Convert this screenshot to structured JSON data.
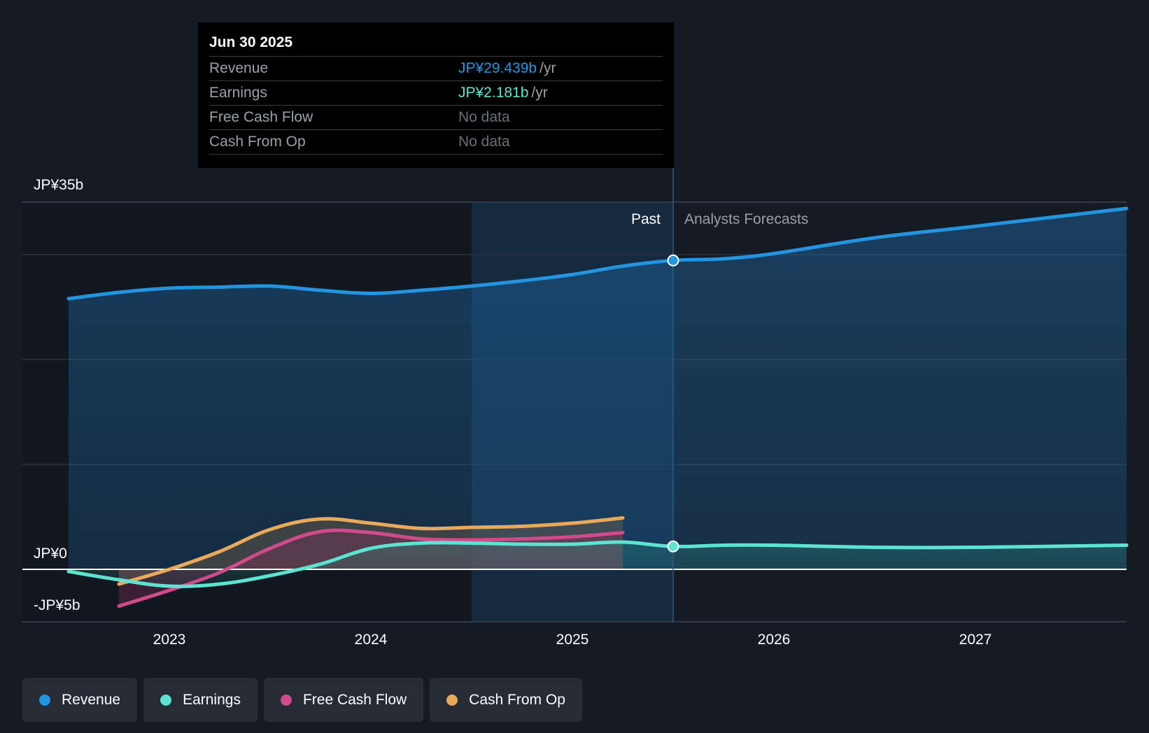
{
  "tooltip": {
    "date": "Jun 30 2025",
    "rows": [
      {
        "label": "Revenue",
        "value": "JP¥29.439b",
        "unit": "/yr",
        "color": "#2394df"
      },
      {
        "label": "Earnings",
        "value": "JP¥2.181b",
        "unit": "/yr",
        "color": "#5ce3d1"
      },
      {
        "label": "Free Cash Flow",
        "value": "No data",
        "unit": "",
        "color": ""
      },
      {
        "label": "Cash From Op",
        "value": "No data",
        "unit": "",
        "color": ""
      }
    ]
  },
  "sections": {
    "past_label": "Past",
    "forecast_label": "Analysts Forecasts"
  },
  "legend": [
    {
      "label": "Revenue",
      "color": "#2394df"
    },
    {
      "label": "Earnings",
      "color": "#5ce3d1"
    },
    {
      "label": "Free Cash Flow",
      "color": "#d04a8c"
    },
    {
      "label": "Cash From Op",
      "color": "#e8a95a"
    }
  ],
  "chart_data": {
    "type": "line",
    "currency": "JP¥",
    "y_tick_labels": [
      {
        "value": 35,
        "label": "JP¥35b"
      },
      {
        "value": 0,
        "label": "JP¥0"
      },
      {
        "value": -5,
        "label": "-JP¥5b"
      }
    ],
    "ylim": [
      -5,
      35
    ],
    "xlim": [
      2022.5,
      2027.75
    ],
    "x_ticks": [
      2023,
      2024,
      2025,
      2026,
      2027
    ],
    "past_end": 2025.5,
    "highlight_start": 2024.5,
    "grid": true,
    "series": [
      {
        "name": "Revenue",
        "color": "#2394df",
        "points": [
          [
            2022.5,
            25.8
          ],
          [
            2022.75,
            26.4
          ],
          [
            2023.0,
            26.8
          ],
          [
            2023.25,
            26.9
          ],
          [
            2023.5,
            27.0
          ],
          [
            2023.75,
            26.6
          ],
          [
            2024.0,
            26.3
          ],
          [
            2024.25,
            26.6
          ],
          [
            2024.5,
            27.0
          ],
          [
            2024.75,
            27.5
          ],
          [
            2025.0,
            28.1
          ],
          [
            2025.25,
            28.9
          ],
          [
            2025.5,
            29.439
          ],
          [
            2025.75,
            29.6
          ],
          [
            2026.0,
            30.1
          ],
          [
            2026.5,
            31.6
          ],
          [
            2027.0,
            32.7
          ],
          [
            2027.75,
            34.4
          ]
        ]
      },
      {
        "name": "Earnings",
        "color": "#5ce3d1",
        "points": [
          [
            2022.5,
            -0.2
          ],
          [
            2022.75,
            -1.0
          ],
          [
            2023.0,
            -1.6
          ],
          [
            2023.25,
            -1.4
          ],
          [
            2023.5,
            -0.6
          ],
          [
            2023.75,
            0.5
          ],
          [
            2024.0,
            2.0
          ],
          [
            2024.25,
            2.5
          ],
          [
            2024.5,
            2.5
          ],
          [
            2024.75,
            2.4
          ],
          [
            2025.0,
            2.4
          ],
          [
            2025.25,
            2.6
          ],
          [
            2025.5,
            2.181
          ],
          [
            2025.75,
            2.3
          ],
          [
            2026.0,
            2.3
          ],
          [
            2026.5,
            2.1
          ],
          [
            2027.0,
            2.1
          ],
          [
            2027.75,
            2.3
          ]
        ]
      },
      {
        "name": "Free Cash Flow",
        "color": "#d04a8c",
        "points": [
          [
            2022.75,
            -3.5
          ],
          [
            2023.0,
            -2.0
          ],
          [
            2023.25,
            -0.3
          ],
          [
            2023.5,
            2.0
          ],
          [
            2023.75,
            3.6
          ],
          [
            2024.0,
            3.5
          ],
          [
            2024.25,
            2.9
          ],
          [
            2024.5,
            2.8
          ],
          [
            2024.75,
            2.9
          ],
          [
            2025.0,
            3.1
          ],
          [
            2025.25,
            3.5
          ]
        ]
      },
      {
        "name": "Cash From Op",
        "color": "#e8a95a",
        "points": [
          [
            2022.75,
            -1.4
          ],
          [
            2023.0,
            0.0
          ],
          [
            2023.25,
            1.7
          ],
          [
            2023.5,
            3.8
          ],
          [
            2023.75,
            4.8
          ],
          [
            2024.0,
            4.4
          ],
          [
            2024.25,
            3.9
          ],
          [
            2024.5,
            4.0
          ],
          [
            2024.75,
            4.1
          ],
          [
            2025.0,
            4.4
          ],
          [
            2025.25,
            4.9
          ]
        ]
      }
    ]
  }
}
